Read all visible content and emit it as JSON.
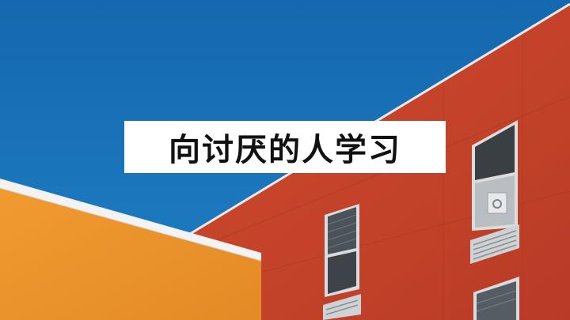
{
  "title": "向讨厌的人学习",
  "colors": {
    "sky": "#1b73b8",
    "red_wall": "#c6422a",
    "orange_wall": "#ea922c",
    "white_trim": "#f4f4f4",
    "title_bg": "#ffffff"
  }
}
